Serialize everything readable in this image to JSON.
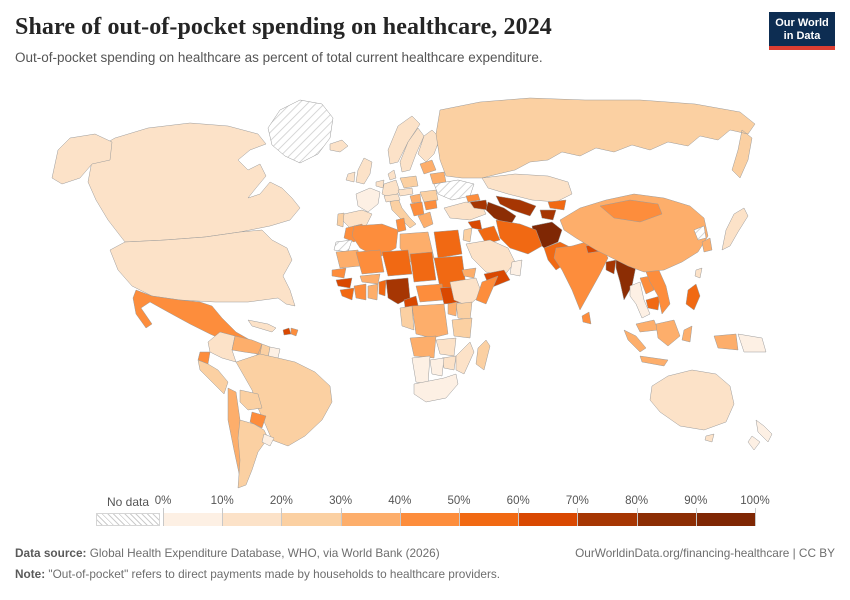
{
  "header": {
    "title": "Share of out-of-pocket spending on healthcare, 2024",
    "subtitle": "Out-of-pocket spending on healthcare as percent of total current healthcare expenditure.",
    "logo": {
      "line1": "Our World",
      "line2": "in Data",
      "bg_color": "#0d2d52",
      "accent_color": "#dc3e32"
    }
  },
  "legend": {
    "no_data_label": "No data",
    "tick_labels": [
      "0%",
      "10%",
      "20%",
      "30%",
      "40%",
      "50%",
      "60%",
      "70%",
      "80%",
      "90%",
      "100%"
    ],
    "bin_colors": [
      "#fdf0e4",
      "#fce2c8",
      "#fbd0a2",
      "#fdae6b",
      "#fd8d3c",
      "#f16913",
      "#d94801",
      "#a63603",
      "#8c2d04",
      "#7f2704"
    ],
    "bin_labels": [
      "0-10%",
      "10-20%",
      "20-30%",
      "30-40%",
      "40-50%",
      "50-60%",
      "60-70%",
      "70-80%",
      "80-90%",
      "90-100%"
    ]
  },
  "footer": {
    "data_source_label": "Data source:",
    "data_source_text": " Global Health Expenditure Database, WHO, via World Bank (2026)",
    "link_text": "OurWorldinData.org/financing-healthcare | CC BY",
    "note_label": "Note:",
    "note_text": " \"Out-of-pocket\" refers to direct payments made by households to healthcare providers."
  },
  "chart_data": {
    "type": "heatmap",
    "map_type": "world-choropleth",
    "title": "Share of out-of-pocket spending on healthcare, 2024",
    "unit": "% of total current healthcare expenditure",
    "bins": [
      "0-10%",
      "10-20%",
      "20-30%",
      "30-40%",
      "40-50%",
      "50-60%",
      "60-70%",
      "70-80%",
      "80-90%",
      "90-100%"
    ],
    "no_data_regions": [
      "Greenland",
      "Ukraine",
      "Western Sahara",
      "North Korea"
    ],
    "regions": [
      {
        "name": "Canada",
        "bin": 1,
        "value": "10-20%"
      },
      {
        "name": "United States",
        "bin": 1,
        "value": "10-20%"
      },
      {
        "name": "Alaska",
        "bin": 1,
        "value": "10-20%"
      },
      {
        "name": "Greenland",
        "bin": null,
        "value": "No data"
      },
      {
        "name": "Mexico",
        "bin": 4,
        "value": "40-50%"
      },
      {
        "name": "Guatemala",
        "bin": 5,
        "value": "50-60%"
      },
      {
        "name": "Honduras-Nicaragua",
        "bin": 3,
        "value": "30-40%"
      },
      {
        "name": "Costa Rica-Panama",
        "bin": 4,
        "value": "40-50%"
      },
      {
        "name": "Cuba",
        "bin": 1,
        "value": "10-20%"
      },
      {
        "name": "Haiti",
        "bin": 6,
        "value": "60-70%"
      },
      {
        "name": "Dominican Republic",
        "bin": 4,
        "value": "40-50%"
      },
      {
        "name": "Colombia",
        "bin": 1,
        "value": "10-20%"
      },
      {
        "name": "Venezuela",
        "bin": 3,
        "value": "30-40%"
      },
      {
        "name": "Guyana",
        "bin": 2,
        "value": "20-30%"
      },
      {
        "name": "Suriname",
        "bin": 0,
        "value": "0-10%"
      },
      {
        "name": "Ecuador",
        "bin": 4,
        "value": "40-50%"
      },
      {
        "name": "Peru",
        "bin": 2,
        "value": "20-30%"
      },
      {
        "name": "Brazil",
        "bin": 2,
        "value": "20-30%"
      },
      {
        "name": "Bolivia",
        "bin": 2,
        "value": "20-30%"
      },
      {
        "name": "Paraguay",
        "bin": 4,
        "value": "40-50%"
      },
      {
        "name": "Chile",
        "bin": 3,
        "value": "30-40%"
      },
      {
        "name": "Argentina",
        "bin": 2,
        "value": "20-30%"
      },
      {
        "name": "Uruguay",
        "bin": 0,
        "value": "0-10%"
      },
      {
        "name": "Iceland",
        "bin": 1,
        "value": "10-20%"
      },
      {
        "name": "United Kingdom",
        "bin": 1,
        "value": "10-20%"
      },
      {
        "name": "Ireland",
        "bin": 1,
        "value": "10-20%"
      },
      {
        "name": "Norway",
        "bin": 1,
        "value": "10-20%"
      },
      {
        "name": "Sweden",
        "bin": 1,
        "value": "10-20%"
      },
      {
        "name": "Finland",
        "bin": 1,
        "value": "10-20%"
      },
      {
        "name": "Denmark",
        "bin": 1,
        "value": "10-20%"
      },
      {
        "name": "France",
        "bin": 0,
        "value": "0-10%"
      },
      {
        "name": "Benelux",
        "bin": 1,
        "value": "10-20%"
      },
      {
        "name": "Germany",
        "bin": 1,
        "value": "10-20%"
      },
      {
        "name": "Spain",
        "bin": 1,
        "value": "10-20%"
      },
      {
        "name": "Portugal",
        "bin": 2,
        "value": "20-30%"
      },
      {
        "name": "Italy",
        "bin": 2,
        "value": "20-30%"
      },
      {
        "name": "Switzerland-Austria",
        "bin": 1,
        "value": "10-20%"
      },
      {
        "name": "Poland",
        "bin": 2,
        "value": "20-30%"
      },
      {
        "name": "Czechia-Slovakia",
        "bin": 1,
        "value": "10-20%"
      },
      {
        "name": "Hungary",
        "bin": 3,
        "value": "30-40%"
      },
      {
        "name": "Romania",
        "bin": 2,
        "value": "20-30%"
      },
      {
        "name": "Serbia-Balkans",
        "bin": 4,
        "value": "40-50%"
      },
      {
        "name": "Bulgaria",
        "bin": 4,
        "value": "40-50%"
      },
      {
        "name": "Greece",
        "bin": 3,
        "value": "30-40%"
      },
      {
        "name": "Baltic states",
        "bin": 3,
        "value": "30-40%"
      },
      {
        "name": "Belarus",
        "bin": 3,
        "value": "30-40%"
      },
      {
        "name": "Ukraine",
        "bin": null,
        "value": "No data"
      },
      {
        "name": "Russia",
        "bin": 2,
        "value": "20-30%"
      },
      {
        "name": "Turkey",
        "bin": 1,
        "value": "10-20%"
      },
      {
        "name": "Georgia",
        "bin": 4,
        "value": "40-50%"
      },
      {
        "name": "Armenia-Azerbaijan",
        "bin": 7,
        "value": "70-80%"
      },
      {
        "name": "Kazakhstan",
        "bin": 1,
        "value": "10-20%"
      },
      {
        "name": "Uzbekistan",
        "bin": 7,
        "value": "70-80%"
      },
      {
        "name": "Turkmenistan",
        "bin": 8,
        "value": "80-90%"
      },
      {
        "name": "Kyrgyzstan",
        "bin": 5,
        "value": "50-60%"
      },
      {
        "name": "Tajikistan",
        "bin": 7,
        "value": "70-80%"
      },
      {
        "name": "Afghanistan",
        "bin": 9,
        "value": "90-100%"
      },
      {
        "name": "Pakistan",
        "bin": 5,
        "value": "50-60%"
      },
      {
        "name": "Iran",
        "bin": 5,
        "value": "50-60%"
      },
      {
        "name": "Iraq",
        "bin": 5,
        "value": "50-60%"
      },
      {
        "name": "Syria",
        "bin": 6,
        "value": "60-70%"
      },
      {
        "name": "Jordan-Israel",
        "bin": 2,
        "value": "20-30%"
      },
      {
        "name": "Saudi Arabia",
        "bin": 1,
        "value": "10-20%"
      },
      {
        "name": "Yemen",
        "bin": 6,
        "value": "60-70%"
      },
      {
        "name": "Oman",
        "bin": 0,
        "value": "0-10%"
      },
      {
        "name": "India",
        "bin": 4,
        "value": "40-50%"
      },
      {
        "name": "Nepal",
        "bin": 6,
        "value": "60-70%"
      },
      {
        "name": "Bangladesh",
        "bin": 7,
        "value": "70-80%"
      },
      {
        "name": "Sri Lanka",
        "bin": 4,
        "value": "40-50%"
      },
      {
        "name": "Myanmar",
        "bin": 8,
        "value": "80-90%"
      },
      {
        "name": "Thailand",
        "bin": 0,
        "value": "0-10%"
      },
      {
        "name": "Laos",
        "bin": 4,
        "value": "40-50%"
      },
      {
        "name": "Cambodia",
        "bin": 5,
        "value": "50-60%"
      },
      {
        "name": "Vietnam",
        "bin": 4,
        "value": "40-50%"
      },
      {
        "name": "Malaysia",
        "bin": 3,
        "value": "30-40%"
      },
      {
        "name": "China",
        "bin": 3,
        "value": "30-40%"
      },
      {
        "name": "Mongolia",
        "bin": 4,
        "value": "40-50%"
      },
      {
        "name": "North Korea",
        "bin": null,
        "value": "No data"
      },
      {
        "name": "South Korea",
        "bin": 3,
        "value": "30-40%"
      },
      {
        "name": "Japan",
        "bin": 1,
        "value": "10-20%"
      },
      {
        "name": "Taiwan",
        "bin": 1,
        "value": "10-20%"
      },
      {
        "name": "Philippines",
        "bin": 5,
        "value": "50-60%"
      },
      {
        "name": "Indonesia Sumatra",
        "bin": 3,
        "value": "30-40%"
      },
      {
        "name": "Indonesia Java",
        "bin": 3,
        "value": "30-40%"
      },
      {
        "name": "Borneo",
        "bin": 3,
        "value": "30-40%"
      },
      {
        "name": "Sulawesi",
        "bin": 3,
        "value": "30-40%"
      },
      {
        "name": "West Papua",
        "bin": 3,
        "value": "30-40%"
      },
      {
        "name": "Papua New Guinea",
        "bin": 0,
        "value": "0-10%"
      },
      {
        "name": "Morocco",
        "bin": 4,
        "value": "40-50%"
      },
      {
        "name": "Western Sahara",
        "bin": null,
        "value": "No data"
      },
      {
        "name": "Algeria",
        "bin": 4,
        "value": "40-50%"
      },
      {
        "name": "Tunisia",
        "bin": 4,
        "value": "40-50%"
      },
      {
        "name": "Libya",
        "bin": 3,
        "value": "30-40%"
      },
      {
        "name": "Egypt",
        "bin": 5,
        "value": "50-60%"
      },
      {
        "name": "Mauritania",
        "bin": 3,
        "value": "30-40%"
      },
      {
        "name": "Mali",
        "bin": 4,
        "value": "40-50%"
      },
      {
        "name": "Niger",
        "bin": 5,
        "value": "50-60%"
      },
      {
        "name": "Chad",
        "bin": 5,
        "value": "50-60%"
      },
      {
        "name": "Sudan",
        "bin": 5,
        "value": "50-60%"
      },
      {
        "name": "Eritrea-Djibouti",
        "bin": 3,
        "value": "30-40%"
      },
      {
        "name": "Senegal",
        "bin": 4,
        "value": "40-50%"
      },
      {
        "name": "Guinea",
        "bin": 6,
        "value": "60-70%"
      },
      {
        "name": "Sierra Leone-Liberia",
        "bin": 5,
        "value": "50-60%"
      },
      {
        "name": "Cote d'Ivoire",
        "bin": 4,
        "value": "40-50%"
      },
      {
        "name": "Ghana",
        "bin": 3,
        "value": "30-40%"
      },
      {
        "name": "Burkina Faso",
        "bin": 3,
        "value": "30-40%"
      },
      {
        "name": "Benin-Togo",
        "bin": 5,
        "value": "50-60%"
      },
      {
        "name": "Nigeria",
        "bin": 7,
        "value": "70-80%"
      },
      {
        "name": "Cameroon",
        "bin": 6,
        "value": "60-70%"
      },
      {
        "name": "Central African Republic",
        "bin": 4,
        "value": "40-50%"
      },
      {
        "name": "South Sudan",
        "bin": 6,
        "value": "60-70%"
      },
      {
        "name": "Ethiopia",
        "bin": 1,
        "value": "10-20%"
      },
      {
        "name": "Somalia",
        "bin": 4,
        "value": "40-50%"
      },
      {
        "name": "Kenya",
        "bin": 2,
        "value": "20-30%"
      },
      {
        "name": "Uganda",
        "bin": 3,
        "value": "30-40%"
      },
      {
        "name": "DR Congo",
        "bin": 3,
        "value": "30-40%"
      },
      {
        "name": "Congo-Gabon",
        "bin": 2,
        "value": "20-30%"
      },
      {
        "name": "Angola",
        "bin": 3,
        "value": "30-40%"
      },
      {
        "name": "Zambia",
        "bin": 1,
        "value": "10-20%"
      },
      {
        "name": "Tanzania",
        "bin": 2,
        "value": "20-30%"
      },
      {
        "name": "Mozambique",
        "bin": 1,
        "value": "10-20%"
      },
      {
        "name": "Zimbabwe",
        "bin": 1,
        "value": "10-20%"
      },
      {
        "name": "Namibia",
        "bin": 0,
        "value": "0-10%"
      },
      {
        "name": "Botswana",
        "bin": 0,
        "value": "0-10%"
      },
      {
        "name": "South Africa",
        "bin": 0,
        "value": "0-10%"
      },
      {
        "name": "Madagascar",
        "bin": 2,
        "value": "20-30%"
      },
      {
        "name": "Australia",
        "bin": 1,
        "value": "10-20%"
      },
      {
        "name": "Tasmania",
        "bin": 1,
        "value": "10-20%"
      },
      {
        "name": "New Zealand",
        "bin": 0,
        "value": "0-10%"
      }
    ]
  }
}
